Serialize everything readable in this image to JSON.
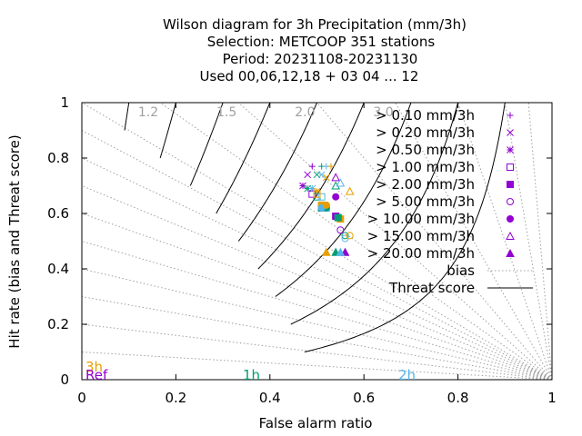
{
  "chart_data": {
    "type": "scatter",
    "title": [
      "Wilson diagram  for 3h Precipitation (mm/3h)",
      "Selection: METCOOP    351 stations",
      "Period: 20231108-20231130",
      "Used  00,06,12,18 + 03 04 ... 12"
    ],
    "xlabel": "False alarm ratio",
    "ylabel": "Hit rate (bias and Threat score)",
    "xlim": [
      0,
      1
    ],
    "ylim": [
      0,
      1
    ],
    "xticks": [
      "0",
      "0.2",
      "0.4",
      "0.6",
      "0.8",
      "1"
    ],
    "yticks": [
      "0",
      "0.2",
      "0.4",
      "0.6",
      "0.8",
      "1"
    ],
    "bias_lines": [
      0.1,
      0.2,
      0.3,
      0.4,
      0.5,
      0.6,
      0.7,
      0.8,
      0.9,
      1.0,
      1.2,
      1.5,
      2.0,
      3.0,
      5.0,
      10.0,
      20.0
    ],
    "bias_labels": [
      "1.2",
      "1.5",
      "2.0",
      "3.0"
    ],
    "threat_score_lines": [
      0.1,
      0.2,
      0.3,
      0.4,
      0.5,
      0.6,
      0.7,
      0.8,
      0.9
    ],
    "legend_lines": [
      {
        "label": "bias",
        "style": "dotted"
      },
      {
        "label": "Threat score",
        "style": "solid"
      }
    ],
    "lead_labels": [
      {
        "text": "3h",
        "color": "#e69f00"
      },
      {
        "text": "Ref",
        "color": "#9400d3"
      },
      {
        "text": "1h",
        "color": "#009e73"
      },
      {
        "text": "2h",
        "color": "#56b4e9"
      }
    ],
    "series": [
      {
        "name": "> 0.10 mm/3h",
        "marker": "plus",
        "color": "#9400d3",
        "points": [
          {
            "x": 0.49,
            "y": 0.77,
            "c": "#9400d3"
          },
          {
            "x": 0.51,
            "y": 0.77,
            "c": "#009e73"
          },
          {
            "x": 0.52,
            "y": 0.77,
            "c": "#56b4e9"
          },
          {
            "x": 0.53,
            "y": 0.77,
            "c": "#e69f00"
          }
        ]
      },
      {
        "name": "> 0.20 mm/3h",
        "marker": "cross",
        "color": "#9400d3",
        "points": [
          {
            "x": 0.48,
            "y": 0.74,
            "c": "#9400d3"
          },
          {
            "x": 0.5,
            "y": 0.74,
            "c": "#009e73"
          },
          {
            "x": 0.51,
            "y": 0.74,
            "c": "#56b4e9"
          },
          {
            "x": 0.52,
            "y": 0.73,
            "c": "#e69f00"
          }
        ]
      },
      {
        "name": "> 0.50 mm/3h",
        "marker": "star",
        "color": "#9400d3",
        "points": [
          {
            "x": 0.47,
            "y": 0.7,
            "c": "#9400d3"
          },
          {
            "x": 0.48,
            "y": 0.69,
            "c": "#009e73"
          },
          {
            "x": 0.49,
            "y": 0.69,
            "c": "#56b4e9"
          },
          {
            "x": 0.5,
            "y": 0.68,
            "c": "#e69f00"
          }
        ]
      },
      {
        "name": "> 1.00 mm/3h",
        "marker": "box",
        "color": "#9400d3",
        "points": [
          {
            "x": 0.49,
            "y": 0.67,
            "c": "#9400d3"
          },
          {
            "x": 0.5,
            "y": 0.66,
            "c": "#009e73"
          },
          {
            "x": 0.51,
            "y": 0.66,
            "c": "#56b4e9"
          },
          {
            "x": 0.5,
            "y": 0.67,
            "c": "#e69f00"
          }
        ]
      },
      {
        "name": "> 2.00 mm/3h",
        "marker": "filled-box",
        "color": "#9400d3",
        "points": [
          {
            "x": 0.51,
            "y": 0.62,
            "c": "#9400d3"
          },
          {
            "x": 0.51,
            "y": 0.62,
            "c": "#009e73"
          },
          {
            "x": 0.52,
            "y": 0.62,
            "c": "#56b4e9"
          },
          {
            "x": 0.51,
            "y": 0.63,
            "c": "#e69f00"
          }
        ]
      },
      {
        "name": "> 5.00 mm/3h",
        "marker": "circle",
        "color": "#9400d3",
        "points": [
          {
            "x": 0.55,
            "y": 0.54,
            "c": "#9400d3"
          },
          {
            "x": 0.56,
            "y": 0.52,
            "c": "#009e73"
          },
          {
            "x": 0.56,
            "y": 0.51,
            "c": "#56b4e9"
          },
          {
            "x": 0.57,
            "y": 0.52,
            "c": "#e69f00"
          }
        ]
      },
      {
        "name": "> 10.00 mm/3h",
        "marker": "filled-circle",
        "color": "#9400d3",
        "points": [
          {
            "x": 0.54,
            "y": 0.66,
            "c": "#9400d3"
          },
          {
            "x": 0.52,
            "y": 0.62,
            "c": "#009e73"
          },
          {
            "x": 0.51,
            "y": 0.62,
            "c": "#56b4e9"
          },
          {
            "x": 0.52,
            "y": 0.63,
            "c": "#e69f00"
          }
        ]
      },
      {
        "name": "> 15.00 mm/3h",
        "marker": "triangle",
        "color": "#9400d3",
        "points": [
          {
            "x": 0.54,
            "y": 0.73,
            "c": "#9400d3"
          },
          {
            "x": 0.54,
            "y": 0.7,
            "c": "#009e73"
          },
          {
            "x": 0.55,
            "y": 0.71,
            "c": "#56b4e9"
          },
          {
            "x": 0.57,
            "y": 0.68,
            "c": "#e69f00"
          }
        ]
      },
      {
        "name": "> 20.00 mm/3h",
        "marker": "filled-triangle",
        "color": "#9400d3",
        "points": [
          {
            "x": 0.56,
            "y": 0.46,
            "c": "#9400d3"
          },
          {
            "x": 0.54,
            "y": 0.46,
            "c": "#009e73"
          },
          {
            "x": 0.55,
            "y": 0.46,
            "c": "#56b4e9"
          },
          {
            "x": 0.52,
            "y": 0.46,
            "c": "#e69f00"
          }
        ]
      }
    ],
    "extra_points": [
      {
        "x": 0.54,
        "y": 0.59,
        "marker": "filled-box",
        "c": "#9400d3"
      },
      {
        "x": 0.55,
        "y": 0.58,
        "marker": "filled-box",
        "c": "#e69f00"
      },
      {
        "x": 0.545,
        "y": 0.585,
        "marker": "filled-box",
        "c": "#009e73"
      }
    ],
    "colors": {
      "ref": "#9400d3",
      "1h": "#009e73",
      "2h": "#56b4e9",
      "3h": "#e69f00",
      "bias_line": "#a0a0a0",
      "threat_line": "#000000"
    },
    "grid": false,
    "legend_position": "top-right"
  }
}
